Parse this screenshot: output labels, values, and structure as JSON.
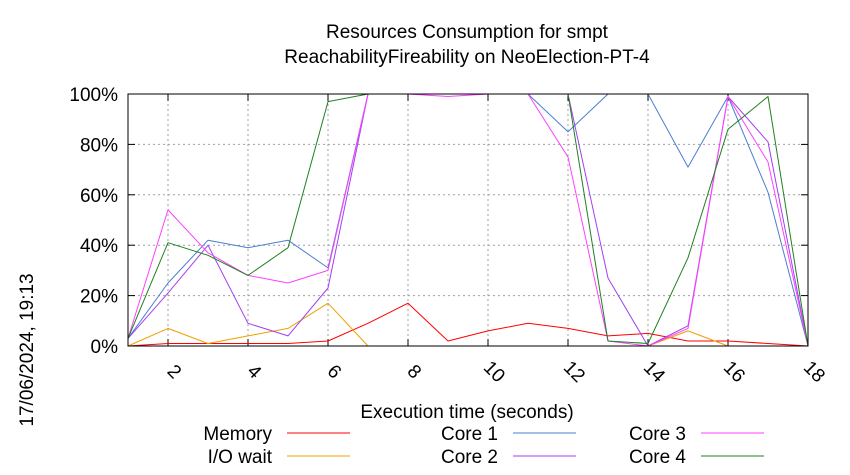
{
  "chart_data": {
    "type": "line",
    "title": "Resources Consumption for smpt",
    "subtitle": "ReachabilityFireability on NeoElection-PT-4",
    "xlabel": "Execution time (seconds)",
    "ylabel": "",
    "timestamp": "17/06/2024, 19:13",
    "xlim": [
      1,
      18
    ],
    "ylim": [
      0,
      100
    ],
    "x_ticks": [
      2,
      4,
      6,
      8,
      10,
      12,
      14,
      16,
      18
    ],
    "y_ticks": [
      {
        "value": 0,
        "label": "0%"
      },
      {
        "value": 20,
        "label": "20%"
      },
      {
        "value": 40,
        "label": "40%"
      },
      {
        "value": 60,
        "label": "60%"
      },
      {
        "value": 80,
        "label": "80%"
      },
      {
        "value": 100,
        "label": "100%"
      }
    ],
    "grid": true,
    "legend_position": "bottom",
    "x": [
      1,
      2,
      3,
      4,
      5,
      6,
      7,
      8,
      9,
      10,
      11,
      12,
      13,
      14,
      15,
      16,
      17,
      18
    ],
    "series": [
      {
        "name": "Memory",
        "color": "#ff0000",
        "values": [
          0,
          1,
          1,
          1,
          1,
          2,
          9,
          17,
          2,
          6,
          9,
          7,
          4,
          5,
          2,
          2,
          1,
          0
        ]
      },
      {
        "name": "I/O wait",
        "color": "#f0a000",
        "values": [
          0,
          7,
          1,
          4,
          7,
          17,
          0,
          null,
          null,
          null,
          null,
          null,
          null,
          0,
          6,
          0,
          null,
          null
        ]
      },
      {
        "name": "Core 1",
        "color": "#4a7fd0",
        "values": [
          3,
          25,
          42,
          39,
          42,
          31,
          100,
          100,
          100,
          100,
          100,
          85,
          100,
          100,
          71,
          99,
          61,
          0
        ]
      },
      {
        "name": "Core 2",
        "color": "#a040f0",
        "values": [
          3,
          21,
          40,
          9,
          4,
          23,
          100,
          100,
          100,
          100,
          100,
          100,
          27,
          0,
          8,
          99,
          81,
          0
        ]
      },
      {
        "name": "Core 3",
        "color": "#ff40ff",
        "values": [
          3,
          54,
          37,
          28,
          25,
          30,
          100,
          100,
          99,
          100,
          100,
          75,
          2,
          0,
          7,
          99,
          73,
          0
        ]
      },
      {
        "name": "Core 4",
        "color": "#208020",
        "values": [
          3,
          41,
          36,
          28,
          39,
          97,
          100,
          100,
          100,
          100,
          100,
          100,
          2,
          1,
          35,
          86,
          99,
          0
        ]
      }
    ],
    "legend_layout": [
      {
        "series": 0,
        "column": 0,
        "row": 0
      },
      {
        "series": 1,
        "column": 0,
        "row": 1
      },
      {
        "series": 2,
        "column": 1,
        "row": 0
      },
      {
        "series": 3,
        "column": 1,
        "row": 1
      },
      {
        "series": 4,
        "column": 2,
        "row": 0
      },
      {
        "series": 5,
        "column": 2,
        "row": 1
      }
    ]
  }
}
